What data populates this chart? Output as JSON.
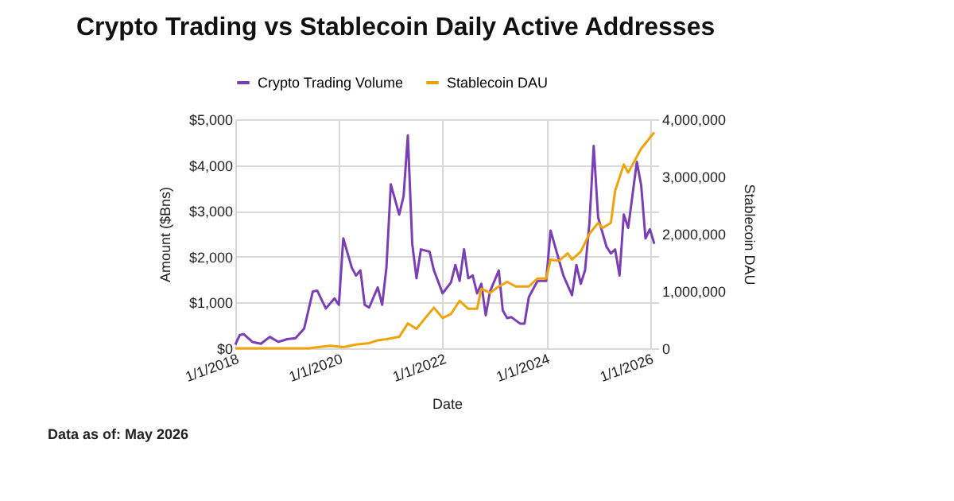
{
  "chart_data": {
    "type": "line",
    "title": "Crypto Trading vs Stablecoin Daily Active Addresses",
    "xlabel": "Date",
    "ylabel": "Amount ($Bns)",
    "y2label": "Stablecoin DAU",
    "annotations": [
      "Data as of: May 2026"
    ],
    "xlim": [
      "2018-01",
      "2026-03"
    ],
    "xticks": [
      {
        "value": "2018-01-01",
        "label": "1/1/2018"
      },
      {
        "value": "2020-01-01",
        "label": "1/1/2020"
      },
      {
        "value": "2022-01-01",
        "label": "1/1/2022"
      },
      {
        "value": "2024-01-01",
        "label": "1/1/2024"
      },
      {
        "value": "2026-01-01",
        "label": "1/1/2026"
      }
    ],
    "ylim": [
      0,
      5000
    ],
    "yticks": [
      {
        "value": 0,
        "label": "$0"
      },
      {
        "value": 1000,
        "label": "$1,000"
      },
      {
        "value": 2000,
        "label": "$2,000"
      },
      {
        "value": 3000,
        "label": "$3,000"
      },
      {
        "value": 4000,
        "label": "$4,000"
      },
      {
        "value": 5000,
        "label": "$5,000"
      }
    ],
    "y2lim": [
      0,
      4000000
    ],
    "y2ticks": [
      {
        "value": 0,
        "label": "0"
      },
      {
        "value": 1000000,
        "label": "1,000,000"
      },
      {
        "value": 2000000,
        "label": "2,000,000"
      },
      {
        "value": 3000000,
        "label": "3,000,000"
      },
      {
        "value": 4000000,
        "label": "4,000,000"
      }
    ],
    "grid": true,
    "legend": "top",
    "line_style": "solid",
    "marker": "none",
    "series": [
      {
        "name": "Crypto Trading Volume",
        "color": "#7b3fb5",
        "x": [
          "2018-01",
          "2018-02",
          "2018-03",
          "2018-05",
          "2018-07",
          "2018-09",
          "2018-11",
          "2019-01",
          "2019-03",
          "2019-05",
          "2019-07",
          "2019-08",
          "2019-10",
          "2019-12",
          "2020-01",
          "2020-02",
          "2020-04",
          "2020-05",
          "2020-06",
          "2020-07",
          "2020-08",
          "2020-10",
          "2020-11",
          "2020-12",
          "2021-01",
          "2021-03",
          "2021-04",
          "2021-05",
          "2021-06",
          "2021-07",
          "2021-08",
          "2021-10",
          "2021-11",
          "2022-01",
          "2022-03",
          "2022-04",
          "2022-05",
          "2022-06",
          "2022-07",
          "2022-08",
          "2022-09",
          "2022-10",
          "2022-11",
          "2022-12",
          "2023-02",
          "2023-03",
          "2023-04",
          "2023-05",
          "2023-07",
          "2023-08",
          "2023-09",
          "2023-11",
          "2024-01",
          "2024-02",
          "2024-05",
          "2024-07",
          "2024-08",
          "2024-09",
          "2024-10",
          "2024-11",
          "2024-12",
          "2025-01",
          "2025-03",
          "2025-04",
          "2025-05",
          "2025-06",
          "2025-07",
          "2025-08",
          "2025-10",
          "2025-11",
          "2025-12",
          "2026-01",
          "2026-02"
        ],
        "values": [
          80,
          290,
          310,
          140,
          100,
          250,
          140,
          200,
          220,
          430,
          1240,
          1260,
          870,
          1090,
          950,
          2400,
          1760,
          1590,
          1700,
          950,
          890,
          1330,
          950,
          1760,
          3580,
          2920,
          3320,
          4650,
          2280,
          1530,
          2160,
          2110,
          1700,
          1200,
          1440,
          1820,
          1470,
          2160,
          1530,
          1590,
          1200,
          1410,
          720,
          1240,
          1700,
          830,
          660,
          680,
          540,
          540,
          1120,
          1470,
          1470,
          2570,
          1590,
          1160,
          1820,
          1410,
          1700,
          2740,
          4420,
          2860,
          2220,
          2070,
          2160,
          1590,
          2920,
          2630,
          4070,
          3550,
          2400,
          2600,
          2280
        ]
      },
      {
        "name": "Stablecoin DAU",
        "color": "#f0a30a",
        "axis": "y2",
        "x": [
          "2018-01",
          "2019-06",
          "2019-11",
          "2020-02",
          "2020-05",
          "2020-08",
          "2020-10",
          "2020-12",
          "2021-03",
          "2021-05",
          "2021-07",
          "2021-10",
          "2021-11",
          "2022-01",
          "2022-03",
          "2022-05",
          "2022-07",
          "2022-09",
          "2022-10",
          "2022-12",
          "2023-02",
          "2023-04",
          "2023-06",
          "2023-09",
          "2023-11",
          "2024-01",
          "2024-02",
          "2024-04",
          "2024-06",
          "2024-07",
          "2024-09",
          "2024-11",
          "2025-01",
          "2025-02",
          "2025-04",
          "2025-05",
          "2025-07",
          "2025-08",
          "2025-09",
          "2025-11",
          "2025-12",
          "2026-01",
          "2026-02"
        ],
        "values": [
          0,
          0,
          46000,
          20000,
          65000,
          90000,
          140000,
          160000,
          200000,
          435000,
          340000,
          620000,
          710000,
          530000,
          600000,
          830000,
          690000,
          690000,
          1040000,
          970000,
          1080000,
          1160000,
          1080000,
          1080000,
          1220000,
          1220000,
          1550000,
          1530000,
          1660000,
          1550000,
          1690000,
          2000000,
          2190000,
          2100000,
          2190000,
          2750000,
          3210000,
          3070000,
          3210000,
          3490000,
          3580000,
          3680000,
          3770000
        ]
      }
    ]
  }
}
